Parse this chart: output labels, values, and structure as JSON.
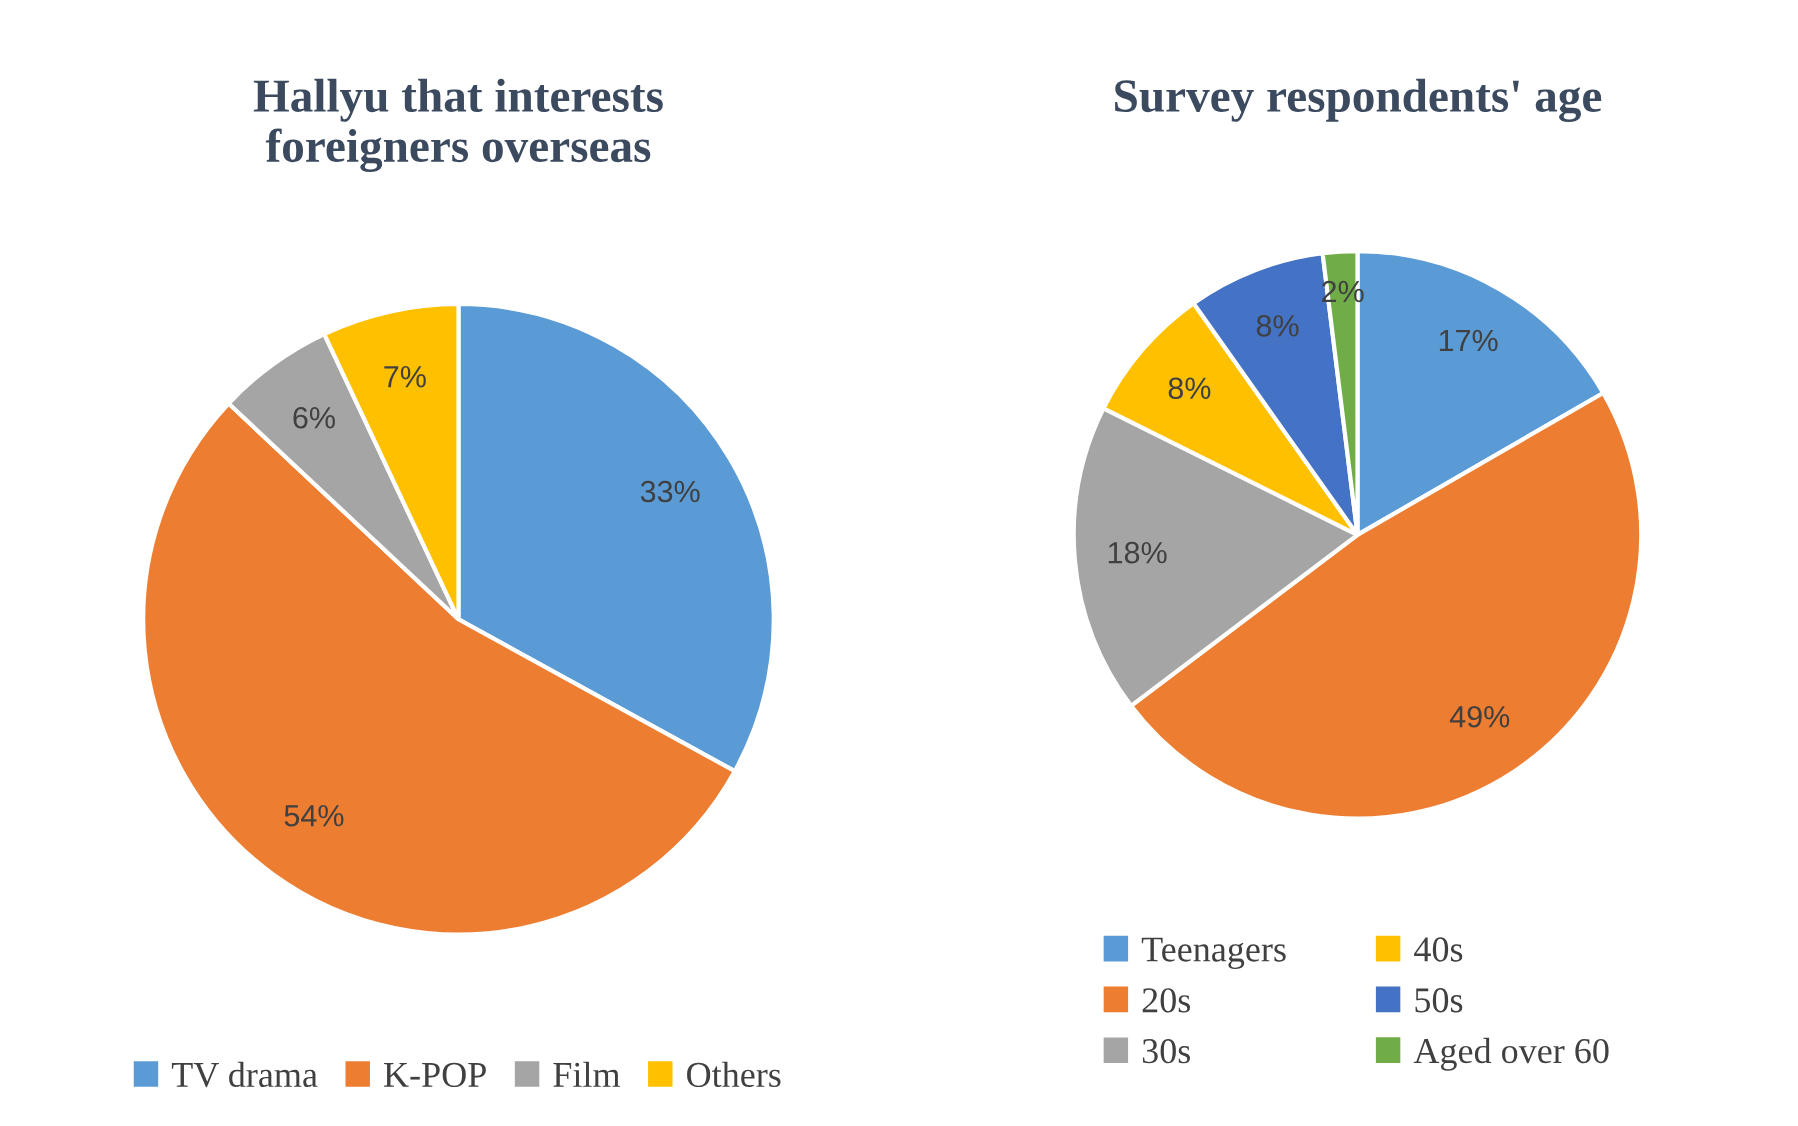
{
  "chart_data": [
    {
      "type": "pie",
      "title": "Hallyu that interests\nforeigners overseas",
      "categories": [
        "TV drama",
        "K-POP",
        "Film",
        "Others"
      ],
      "values": [
        33,
        54,
        6,
        7
      ],
      "value_labels": [
        "33%",
        "54%",
        "6%",
        "7%"
      ],
      "colors": [
        "#5b9bd5",
        "#ed7d31",
        "#a5a5a5",
        "#ffc000"
      ],
      "legend": "bottom"
    },
    {
      "type": "pie",
      "title": "Survey respondents' age",
      "categories": [
        "Teenagers",
        "20s",
        "30s",
        "40s",
        "50s",
        "Aged over 60"
      ],
      "values": [
        17,
        49,
        18,
        8,
        8,
        2
      ],
      "value_labels": [
        "17%",
        "49%",
        "18%",
        "8%",
        "8%",
        "2%"
      ],
      "colors": [
        "#5b9bd5",
        "#ed7d31",
        "#a5a5a5",
        "#ffc000",
        "#4472c4",
        "#70ad47"
      ],
      "legend": "bottom"
    }
  ]
}
